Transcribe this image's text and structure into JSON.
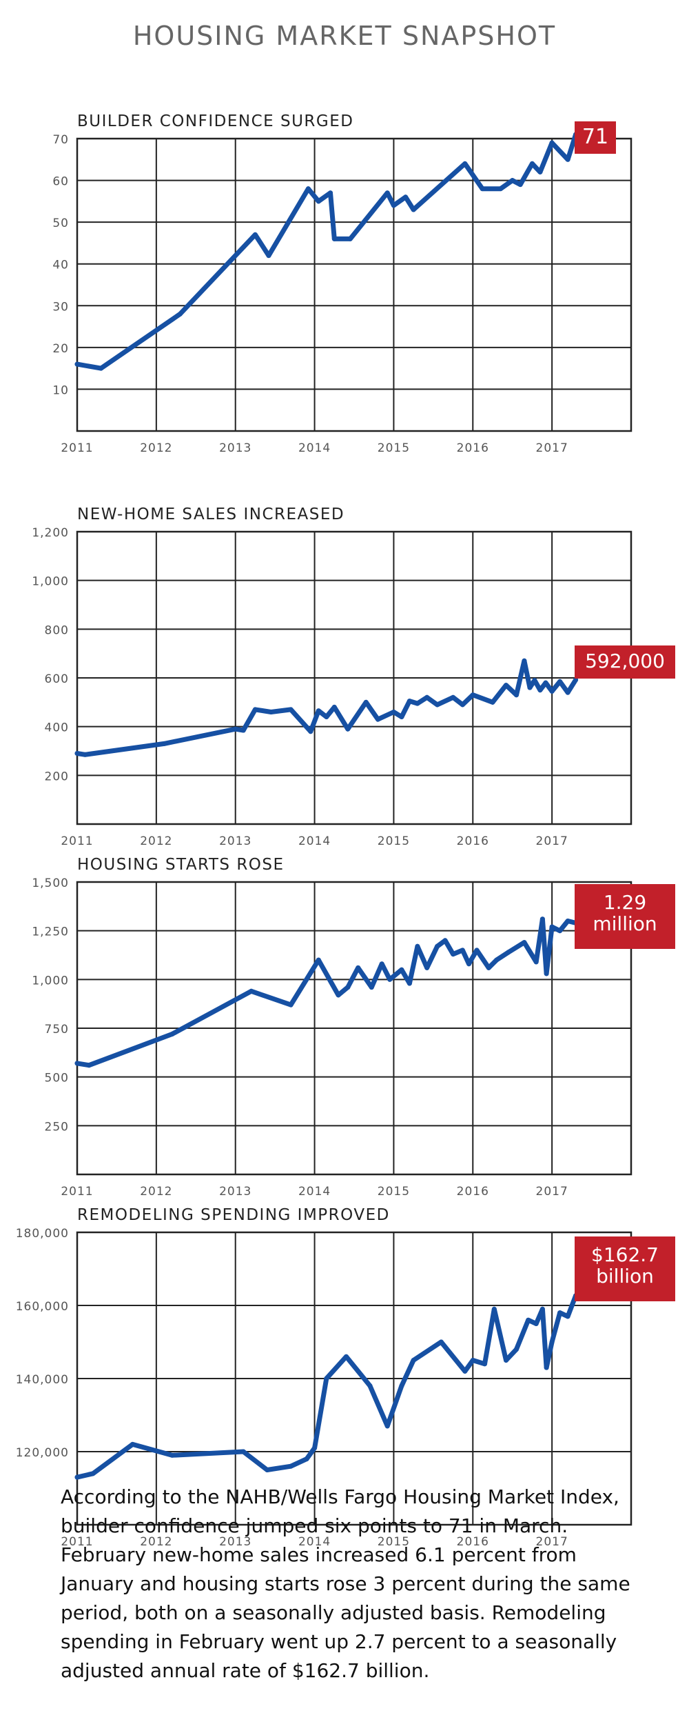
{
  "title": "HOUSING MARKET SNAPSHOT",
  "colors": {
    "line": "#1650a3",
    "callout": "#c2202a",
    "grid": "#222222"
  },
  "chart_data": [
    {
      "type": "line",
      "title": "BUILDER CONFIDENCE SURGED",
      "callout": [
        "71"
      ],
      "ylim": [
        0,
        70
      ],
      "yticks": [
        10,
        20,
        30,
        40,
        50,
        60,
        70
      ],
      "ytick_labels": [
        "10",
        "20",
        "30",
        "40",
        "50",
        "60",
        "70"
      ],
      "xlim": [
        2011,
        2018
      ],
      "xticks": [
        "2011",
        "2012",
        "2013",
        "2014",
        "2015",
        "2016",
        "2017"
      ],
      "grid": true,
      "x": [
        2011.0,
        2011.3,
        2012.3,
        2013.25,
        2013.42,
        2013.92,
        2014.05,
        2014.2,
        2014.25,
        2014.45,
        2014.92,
        2015.0,
        2015.15,
        2015.25,
        2015.9,
        2016.12,
        2016.35,
        2016.5,
        2016.6,
        2016.75,
        2016.85,
        2017.0,
        2017.2,
        2017.3
      ],
      "y": [
        16,
        15,
        28,
        47,
        42,
        58,
        55,
        57,
        46,
        46,
        57,
        54,
        56,
        53,
        64,
        58,
        58,
        60,
        59,
        64,
        62,
        69,
        65,
        71
      ]
    },
    {
      "type": "line",
      "title": "NEW-HOME SALES INCREASED",
      "callout": [
        "592,000"
      ],
      "ylim": [
        0,
        1200
      ],
      "yticks": [
        200,
        400,
        600,
        800,
        1000,
        1200
      ],
      "ytick_labels": [
        "200",
        "400",
        "600",
        "800",
        "1,000",
        "1,200"
      ],
      "xlim": [
        2011,
        2018
      ],
      "xticks": [
        "2011",
        "2012",
        "2013",
        "2014",
        "2015",
        "2016",
        "2017"
      ],
      "grid": true,
      "x": [
        2011.0,
        2011.1,
        2012.1,
        2013.0,
        2013.1,
        2013.25,
        2013.45,
        2013.7,
        2013.95,
        2014.05,
        2014.15,
        2014.25,
        2014.42,
        2014.65,
        2014.8,
        2015.0,
        2015.1,
        2015.2,
        2015.3,
        2015.42,
        2015.55,
        2015.75,
        2015.87,
        2016.0,
        2016.25,
        2016.42,
        2016.55,
        2016.65,
        2016.72,
        2016.78,
        2016.85,
        2016.92,
        2017.0,
        2017.1,
        2017.2,
        2017.3
      ],
      "y": [
        290,
        285,
        330,
        390,
        385,
        470,
        460,
        470,
        380,
        465,
        440,
        480,
        390,
        500,
        430,
        460,
        440,
        505,
        495,
        520,
        490,
        520,
        490,
        530,
        500,
        570,
        530,
        670,
        560,
        590,
        550,
        580,
        545,
        585,
        540,
        592
      ]
    },
    {
      "type": "line",
      "title": "HOUSING STARTS ROSE",
      "callout": [
        "1.29",
        "million"
      ],
      "ylim": [
        0,
        1500
      ],
      "yticks": [
        250,
        500,
        750,
        1000,
        1250,
        1500
      ],
      "ytick_labels": [
        "250",
        "500",
        "750",
        "1,000",
        "1,250",
        "1,500"
      ],
      "xlim": [
        2011,
        2018
      ],
      "xticks": [
        "2011",
        "2012",
        "2013",
        "2014",
        "2015",
        "2016",
        "2017"
      ],
      "grid": true,
      "x": [
        2011.0,
        2011.15,
        2012.2,
        2013.2,
        2013.7,
        2014.05,
        2014.3,
        2014.42,
        2014.55,
        2014.72,
        2014.85,
        2014.95,
        2015.1,
        2015.2,
        2015.3,
        2015.42,
        2015.55,
        2015.65,
        2015.75,
        2015.87,
        2015.95,
        2016.05,
        2016.2,
        2016.3,
        2016.45,
        2016.65,
        2016.8,
        2016.88,
        2016.93,
        2017.0,
        2017.1,
        2017.2,
        2017.3
      ],
      "y": [
        570,
        560,
        720,
        940,
        870,
        1100,
        920,
        960,
        1060,
        960,
        1080,
        1000,
        1050,
        980,
        1170,
        1060,
        1170,
        1200,
        1130,
        1150,
        1080,
        1150,
        1060,
        1100,
        1140,
        1190,
        1090,
        1310,
        1030,
        1270,
        1250,
        1300,
        1290
      ]
    },
    {
      "type": "line",
      "title": "REMODELING SPENDING IMPROVED",
      "callout": [
        "$162.7",
        "billion"
      ],
      "ylim": [
        100000,
        180000
      ],
      "yticks": [
        120000,
        140000,
        160000,
        180000
      ],
      "ytick_labels": [
        "120,000",
        "140,000",
        "160,000",
        "180,000"
      ],
      "xlim": [
        2011,
        2018
      ],
      "xticks": [
        "2011",
        "2012",
        "2013",
        "2014",
        "2015",
        "2016",
        "2017"
      ],
      "grid": true,
      "x": [
        2011.0,
        2011.2,
        2011.7,
        2012.2,
        2013.1,
        2013.4,
        2013.7,
        2013.9,
        2014.0,
        2014.15,
        2014.4,
        2014.7,
        2014.92,
        2015.1,
        2015.25,
        2015.6,
        2015.9,
        2016.0,
        2016.15,
        2016.27,
        2016.42,
        2016.55,
        2016.7,
        2016.8,
        2016.88,
        2016.93,
        2017.0,
        2017.1,
        2017.2,
        2017.3
      ],
      "y": [
        113000,
        114000,
        122000,
        119000,
        120000,
        115000,
        116000,
        118000,
        121000,
        140000,
        146000,
        138000,
        127000,
        138000,
        145000,
        150000,
        142000,
        145000,
        144000,
        159000,
        145000,
        148000,
        156000,
        155000,
        159000,
        143000,
        150000,
        158000,
        157000,
        162700
      ]
    }
  ],
  "body": "According to the NAHB/Wells Fargo Housing Market Index, builder confidence jumped six points to 71 in March. February new-home sales increased 6.1 percent from January and housing starts rose 3 percent during the same period, both on a seasonally adjusted basis. Remodeling spending in February went up 2.7 percent to a seasonally adjusted annual rate of $162.7 billion."
}
